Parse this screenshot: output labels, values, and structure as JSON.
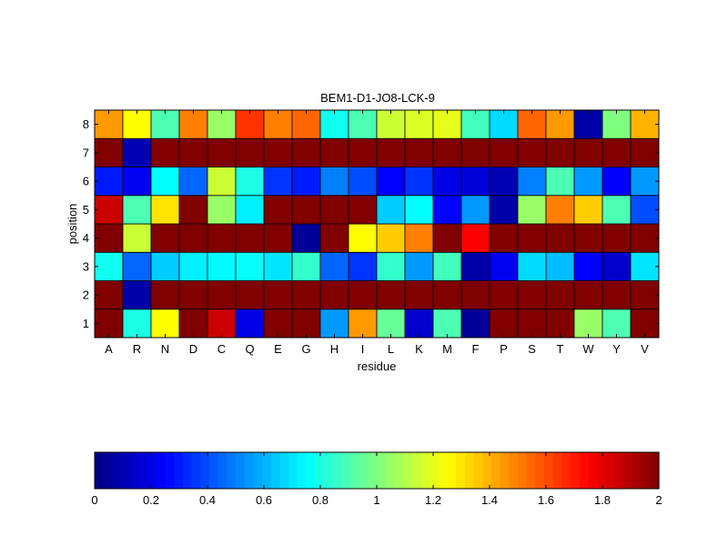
{
  "chart_data": {
    "type": "heatmap",
    "title": "BEM1-D1-JO8-LCK-9",
    "xlabel": "residue",
    "ylabel": "position",
    "x_categories": [
      "A",
      "R",
      "N",
      "D",
      "C",
      "Q",
      "E",
      "G",
      "H",
      "I",
      "L",
      "K",
      "M",
      "F",
      "P",
      "S",
      "T",
      "W",
      "Y",
      "V"
    ],
    "y_categories": [
      "1",
      "2",
      "3",
      "4",
      "5",
      "6",
      "7",
      "8"
    ],
    "values": [
      [
        2.0,
        0.8,
        1.25,
        2.0,
        1.85,
        0.2,
        2.0,
        2.0,
        0.55,
        1.45,
        0.95,
        0.15,
        0.9,
        0.05,
        2.0,
        2.0,
        2.0,
        1.05,
        0.9,
        2.0
      ],
      [
        2.0,
        0.08,
        2.0,
        2.0,
        2.0,
        2.0,
        2.0,
        2.0,
        2.0,
        2.0,
        2.0,
        2.0,
        2.0,
        2.0,
        2.0,
        2.0,
        2.0,
        2.0,
        2.0,
        2.0
      ],
      [
        0.78,
        0.45,
        0.65,
        0.72,
        0.74,
        0.76,
        0.7,
        0.85,
        0.45,
        0.35,
        0.85,
        0.55,
        0.88,
        0.08,
        0.22,
        0.68,
        0.62,
        0.25,
        0.15,
        0.7
      ],
      [
        2.0,
        1.15,
        2.0,
        2.0,
        2.0,
        2.0,
        2.0,
        0.05,
        2.0,
        1.25,
        1.35,
        1.5,
        2.0,
        1.75,
        2.0,
        2.0,
        2.0,
        2.0,
        2.0,
        2.0
      ],
      [
        1.85,
        0.9,
        1.3,
        2.0,
        1.05,
        0.72,
        2.0,
        2.0,
        2.0,
        2.0,
        0.65,
        0.75,
        0.25,
        0.55,
        0.08,
        1.05,
        1.5,
        1.35,
        0.9,
        0.4
      ],
      [
        0.3,
        0.22,
        0.75,
        0.45,
        1.15,
        0.8,
        0.35,
        0.3,
        0.5,
        0.4,
        0.25,
        0.35,
        0.2,
        0.18,
        0.1,
        0.5,
        0.9,
        0.55,
        0.25,
        0.55
      ],
      [
        2.0,
        0.1,
        2.0,
        2.0,
        2.0,
        2.0,
        2.0,
        2.0,
        2.0,
        2.0,
        2.0,
        2.0,
        2.0,
        2.0,
        2.0,
        2.0,
        2.0,
        2.0,
        2.0,
        2.0
      ],
      [
        1.45,
        1.25,
        0.9,
        1.5,
        1.05,
        1.65,
        1.5,
        1.55,
        0.78,
        0.9,
        1.15,
        1.18,
        1.2,
        0.88,
        0.68,
        1.55,
        1.45,
        0.08,
        1.0,
        1.4
      ]
    ],
    "colorbar": {
      "range": [
        0,
        2
      ],
      "ticks": [
        "0",
        "0.2",
        "0.4",
        "0.6",
        "0.8",
        "1",
        "1.2",
        "1.4",
        "1.6",
        "1.8",
        "2"
      ],
      "colormap": "jet"
    },
    "grid": false,
    "legend": "colorbar-bottom"
  }
}
